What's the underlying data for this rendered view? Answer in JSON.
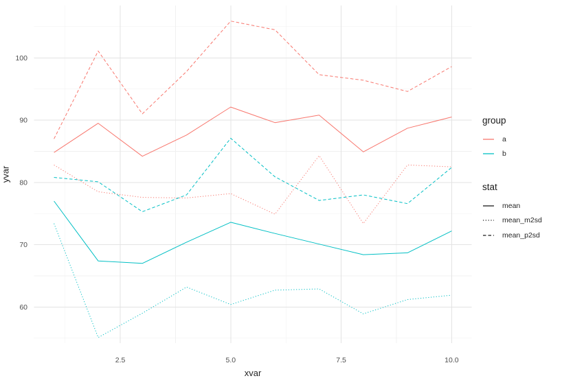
{
  "chart_data": {
    "type": "line",
    "title": "",
    "xlabel": "xvar",
    "ylabel": "yvar",
    "x": [
      1,
      2,
      3,
      4,
      5,
      6,
      7,
      8,
      9,
      10
    ],
    "series": [
      {
        "name": "a mean",
        "group": "a",
        "stat": "mean",
        "color": "#F8766D",
        "dash": "solid",
        "values": [
          84.8,
          89.5,
          84.2,
          87.6,
          92.1,
          89.6,
          90.8,
          84.9,
          88.7,
          90.5
        ]
      },
      {
        "name": "a mean_m2sd",
        "group": "a",
        "stat": "mean_m2sd",
        "color": "#F8766D",
        "dash": "dotted",
        "values": [
          82.8,
          78.5,
          77.6,
          77.5,
          78.2,
          74.9,
          84.3,
          73.4,
          82.8,
          82.5
        ]
      },
      {
        "name": "a mean_p2sd",
        "group": "a",
        "stat": "mean_p2sd",
        "color": "#F8766D",
        "dash": "dashed",
        "values": [
          87.0,
          101.1,
          91.0,
          97.8,
          105.9,
          104.5,
          97.3,
          96.4,
          94.6,
          98.6
        ]
      },
      {
        "name": "b mean",
        "group": "b",
        "stat": "mean",
        "color": "#00BFC4",
        "dash": "solid",
        "values": [
          77.0,
          67.4,
          67.0,
          70.4,
          73.6,
          71.8,
          70.1,
          68.4,
          68.7,
          72.2
        ]
      },
      {
        "name": "b mean_m2sd",
        "group": "b",
        "stat": "mean_m2sd",
        "color": "#00BFC4",
        "dash": "dotted",
        "values": [
          73.4,
          55.1,
          59.0,
          63.2,
          60.4,
          62.7,
          62.9,
          58.9,
          61.2,
          61.9
        ]
      },
      {
        "name": "b mean_p2sd",
        "group": "b",
        "stat": "mean_p2sd",
        "color": "#00BFC4",
        "dash": "dashed",
        "values": [
          80.8,
          80.1,
          75.3,
          78.0,
          87.1,
          80.9,
          77.1,
          78.0,
          76.6,
          82.4
        ]
      }
    ],
    "x_axis": {
      "ticks": [
        2.5,
        5.0,
        7.5,
        10.0
      ],
      "tick_labels": [
        "2.5",
        "5.0",
        "7.5",
        "10.0"
      ],
      "lim": [
        0.55,
        10.45
      ]
    },
    "y_axis": {
      "ticks": [
        60,
        70,
        80,
        90,
        100
      ],
      "tick_labels": [
        "60",
        "70",
        "80",
        "90",
        "100"
      ],
      "lim": [
        54.2,
        108.4
      ]
    },
    "grid": {
      "major": true,
      "minor": true
    },
    "legend_position": "right"
  },
  "legend": {
    "group": {
      "title": "group",
      "items": [
        {
          "label": "a",
          "color": "#F8766D",
          "dash": "solid"
        },
        {
          "label": "b",
          "color": "#00BFC4",
          "dash": "solid"
        }
      ]
    },
    "stat": {
      "title": "stat",
      "items": [
        {
          "label": "mean",
          "color": "#1a1a1a",
          "dash": "solid"
        },
        {
          "label": "mean_m2sd",
          "color": "#1a1a1a",
          "dash": "dotted"
        },
        {
          "label": "mean_p2sd",
          "color": "#1a1a1a",
          "dash": "dashed"
        }
      ]
    }
  },
  "colors": {
    "background": "#FFFFFF",
    "grid_major": "#E3E3E3",
    "grid_minor": "#F0F0F0",
    "tick_text": "#4D4D4D",
    "axis_title": "#262626",
    "group_a": "#F8766D",
    "group_b": "#00BFC4"
  }
}
